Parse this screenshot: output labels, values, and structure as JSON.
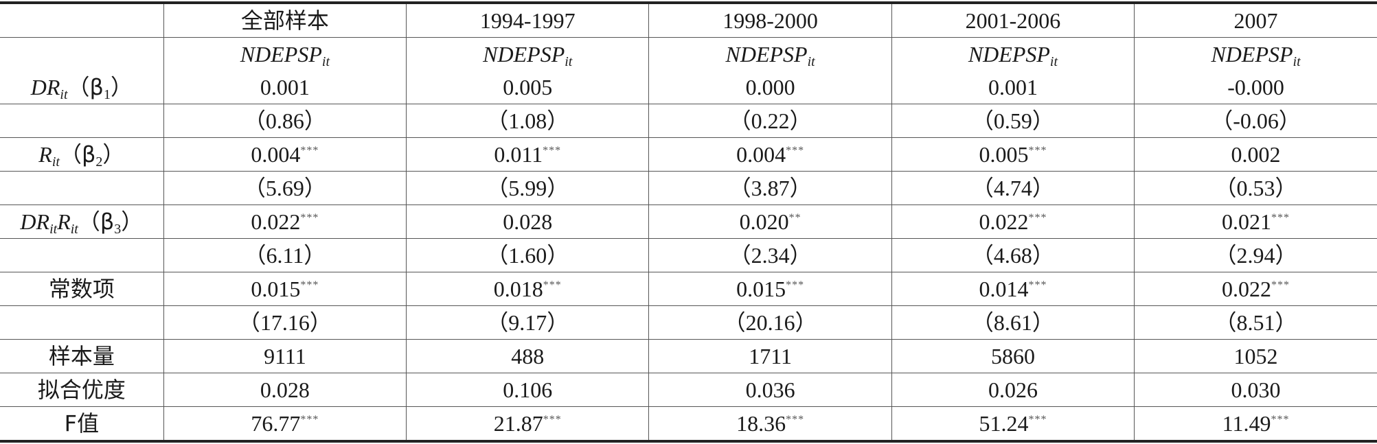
{
  "table": {
    "header": [
      "",
      "全部样本",
      "1994-1997",
      "1998-2000",
      "2001-2006",
      "2007"
    ],
    "dependent": {
      "main": "NDEPSP",
      "sub": "it"
    },
    "variables": {
      "dr": {
        "main": "DR",
        "sub": "it",
        "beta": "（β",
        "beta_sub": "1",
        "close": "）"
      },
      "r": {
        "main": "R",
        "sub": "it",
        "beta": "（β",
        "beta_sub": "2",
        "close": "）"
      },
      "drr": {
        "main1": "DR",
        "sub1": "it",
        "main2": "R",
        "sub2": "it",
        "beta": "（β",
        "beta_sub": "3",
        "close": "）"
      }
    },
    "rows": [
      {
        "label": "",
        "cells": [
          {
            "v": "0.001",
            "s": ""
          },
          {
            "v": "0.005",
            "s": ""
          },
          {
            "v": "0.000",
            "s": ""
          },
          {
            "v": "0.001",
            "s": ""
          },
          {
            "v": "-0.000",
            "s": ""
          }
        ]
      },
      {
        "label": "",
        "cells": [
          {
            "v": "（0.86）",
            "s": ""
          },
          {
            "v": "（1.08）",
            "s": ""
          },
          {
            "v": "（0.22）",
            "s": ""
          },
          {
            "v": "（0.59）",
            "s": ""
          },
          {
            "v": "（-0.06）",
            "s": ""
          }
        ]
      },
      {
        "label": "",
        "cells": [
          {
            "v": "0.004",
            "s": "***"
          },
          {
            "v": "0.011",
            "s": "***"
          },
          {
            "v": "0.004",
            "s": "***"
          },
          {
            "v": "0.005",
            "s": "***"
          },
          {
            "v": "0.002",
            "s": ""
          }
        ]
      },
      {
        "label": "",
        "cells": [
          {
            "v": "（5.69）",
            "s": ""
          },
          {
            "v": "（5.99）",
            "s": ""
          },
          {
            "v": "（3.87）",
            "s": ""
          },
          {
            "v": "（4.74）",
            "s": ""
          },
          {
            "v": "（0.53）",
            "s": ""
          }
        ]
      },
      {
        "label": "",
        "cells": [
          {
            "v": "0.022",
            "s": "***"
          },
          {
            "v": "0.028",
            "s": ""
          },
          {
            "v": "0.020",
            "s": "**"
          },
          {
            "v": "0.022",
            "s": "***"
          },
          {
            "v": "0.021",
            "s": "***"
          }
        ]
      },
      {
        "label": "",
        "cells": [
          {
            "v": "（6.11）",
            "s": ""
          },
          {
            "v": "（1.60）",
            "s": ""
          },
          {
            "v": "（2.34）",
            "s": ""
          },
          {
            "v": "（4.68）",
            "s": ""
          },
          {
            "v": "（2.94）",
            "s": ""
          }
        ]
      },
      {
        "label": "常数项",
        "cells": [
          {
            "v": "0.015",
            "s": "***"
          },
          {
            "v": "0.018",
            "s": "***"
          },
          {
            "v": "0.015",
            "s": "***"
          },
          {
            "v": "0.014",
            "s": "***"
          },
          {
            "v": "0.022",
            "s": "***"
          }
        ]
      },
      {
        "label": "",
        "cells": [
          {
            "v": "（17.16）",
            "s": ""
          },
          {
            "v": "（9.17）",
            "s": ""
          },
          {
            "v": "（20.16）",
            "s": ""
          },
          {
            "v": "（8.61）",
            "s": ""
          },
          {
            "v": "（8.51）",
            "s": ""
          }
        ]
      },
      {
        "label": "样本量",
        "cells": [
          {
            "v": "9111",
            "s": ""
          },
          {
            "v": "488",
            "s": ""
          },
          {
            "v": "1711",
            "s": ""
          },
          {
            "v": "5860",
            "s": ""
          },
          {
            "v": "1052",
            "s": ""
          }
        ]
      },
      {
        "label": "拟合优度",
        "cells": [
          {
            "v": "0.028",
            "s": ""
          },
          {
            "v": "0.106",
            "s": ""
          },
          {
            "v": "0.036",
            "s": ""
          },
          {
            "v": "0.026",
            "s": ""
          },
          {
            "v": "0.030",
            "s": ""
          }
        ]
      },
      {
        "label": "F值",
        "cells": [
          {
            "v": "76.77",
            "s": "***"
          },
          {
            "v": "21.87",
            "s": "***"
          },
          {
            "v": "18.36",
            "s": "***"
          },
          {
            "v": "51.24",
            "s": "***"
          },
          {
            "v": "11.49",
            "s": "***"
          }
        ]
      }
    ]
  }
}
